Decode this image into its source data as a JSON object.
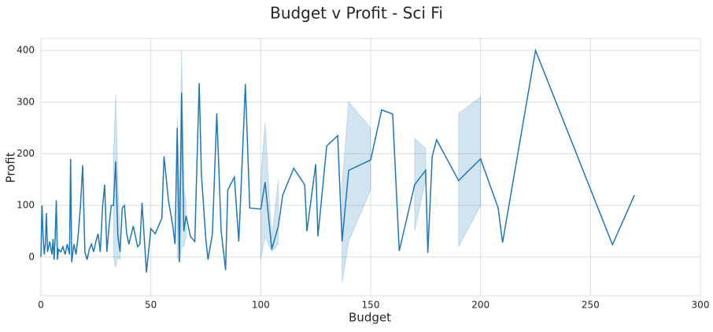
{
  "chart_data": {
    "type": "line",
    "title": "Budget v Profit - Sci Fi",
    "x_label": "Budget",
    "y_label": "Profit",
    "color": "#1f77b4",
    "grid": true,
    "x": [
      0,
      0.5,
      1,
      1.5,
      2,
      2.5,
      3,
      4,
      5,
      5.5,
      6,
      6.5,
      7,
      7.5,
      8,
      9,
      10,
      11,
      12,
      13,
      13.5,
      14,
      15,
      16,
      17,
      18,
      19,
      20,
      21,
      22,
      23,
      24,
      25,
      26,
      27,
      28,
      29,
      30,
      31,
      32,
      33,
      34,
      35,
      36,
      37,
      38,
      39,
      40,
      42,
      44,
      45,
      46,
      48,
      50,
      52,
      55,
      56,
      58,
      60,
      61,
      62,
      63,
      64,
      65,
      66,
      68,
      70,
      72,
      73,
      75,
      76,
      78,
      80,
      82,
      84,
      85,
      88,
      90,
      92,
      93,
      95,
      100,
      102,
      105,
      108,
      110,
      115,
      120,
      121,
      125,
      126,
      130,
      135,
      137,
      140,
      150,
      155,
      160,
      163,
      170,
      175,
      176,
      178,
      180,
      190,
      200,
      208,
      210,
      225,
      260,
      270
    ],
    "values": [
      0,
      100,
      40,
      5,
      25,
      85,
      10,
      30,
      5,
      35,
      -5,
      40,
      110,
      -5,
      15,
      10,
      20,
      5,
      25,
      5,
      190,
      -10,
      25,
      5,
      45,
      100,
      178,
      10,
      -5,
      15,
      25,
      10,
      30,
      45,
      10,
      95,
      140,
      10,
      60,
      100,
      100,
      185,
      40,
      10,
      95,
      100,
      45,
      25,
      60,
      20,
      25,
      105,
      -30,
      55,
      45,
      75,
      195,
      110,
      60,
      25,
      250,
      -10,
      318,
      50,
      80,
      40,
      30,
      337,
      160,
      35,
      -5,
      45,
      278,
      50,
      -25,
      130,
      155,
      30,
      230,
      335,
      95,
      93,
      145,
      15,
      60,
      120,
      172,
      140,
      50,
      180,
      40,
      215,
      235,
      30,
      168,
      188,
      285,
      277,
      12,
      140,
      168,
      8,
      195,
      227,
      148,
      190,
      95,
      28,
      400,
      24,
      120
    ],
    "lower": [
      null,
      null,
      null,
      null,
      null,
      null,
      null,
      null,
      null,
      null,
      null,
      null,
      null,
      null,
      null,
      null,
      null,
      null,
      null,
      null,
      null,
      null,
      null,
      null,
      null,
      null,
      null,
      null,
      null,
      null,
      null,
      null,
      null,
      null,
      null,
      null,
      null,
      null,
      null,
      null,
      0,
      -20,
      0,
      -5,
      null,
      null,
      null,
      null,
      null,
      null,
      null,
      null,
      null,
      null,
      null,
      null,
      null,
      null,
      null,
      null,
      0,
      -10,
      20,
      20,
      40,
      null,
      null,
      null,
      null,
      null,
      null,
      null,
      null,
      null,
      null,
      null,
      null,
      null,
      null,
      null,
      null,
      -5,
      40,
      10,
      25,
      null,
      null,
      null,
      null,
      null,
      null,
      null,
      null,
      -50,
      30,
      130,
      null,
      null,
      null,
      50,
      150,
      null,
      null,
      null,
      20,
      100,
      null,
      null,
      null,
      null,
      null
    ],
    "upper": [
      null,
      null,
      null,
      null,
      null,
      null,
      null,
      null,
      null,
      null,
      null,
      null,
      null,
      null,
      null,
      null,
      null,
      null,
      null,
      null,
      null,
      null,
      null,
      null,
      null,
      null,
      null,
      null,
      null,
      null,
      null,
      null,
      null,
      null,
      null,
      null,
      null,
      null,
      null,
      null,
      200,
      315,
      150,
      30,
      null,
      null,
      null,
      null,
      null,
      null,
      null,
      null,
      null,
      null,
      null,
      null,
      null,
      null,
      null,
      null,
      270,
      100,
      400,
      130,
      110,
      null,
      null,
      null,
      null,
      null,
      null,
      null,
      null,
      null,
      null,
      null,
      null,
      null,
      null,
      null,
      null,
      155,
      260,
      35,
      150,
      null,
      null,
      null,
      null,
      null,
      null,
      null,
      null,
      140,
      300,
      250,
      null,
      null,
      null,
      230,
      210,
      null,
      null,
      null,
      278,
      310,
      null,
      null,
      null,
      null,
      null
    ],
    "xlim": [
      0,
      300
    ],
    "xticks": [
      0,
      50,
      100,
      150,
      200,
      250,
      300
    ],
    "ylim": [
      -75,
      423
    ],
    "yticks": [
      0,
      100,
      200,
      300,
      400
    ]
  }
}
